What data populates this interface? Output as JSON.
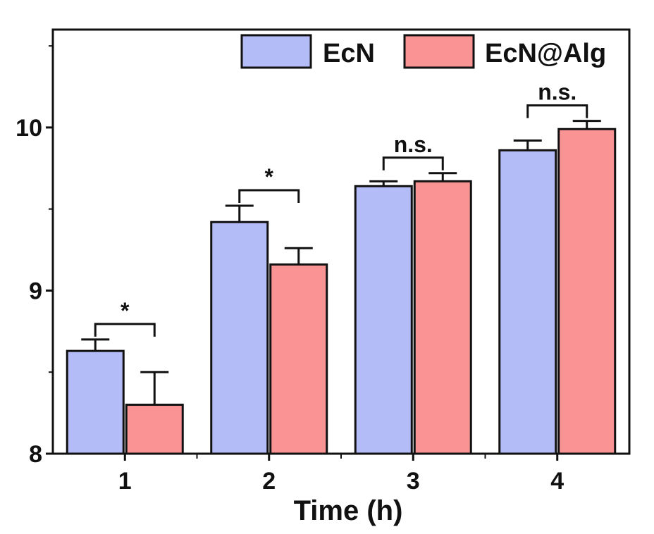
{
  "chart_data": {
    "type": "bar",
    "categories": [
      "1",
      "2",
      "3",
      "4"
    ],
    "series": [
      {
        "name": "EcN",
        "color": "#b3bcf7",
        "values": [
          8.63,
          9.42,
          9.64,
          9.86
        ],
        "errors": [
          0.07,
          0.1,
          0.03,
          0.06
        ]
      },
      {
        "name": "EcN@Alg",
        "color": "#f99394",
        "values": [
          8.3,
          9.16,
          9.67,
          9.99
        ],
        "errors": [
          0.2,
          0.1,
          0.05,
          0.05
        ]
      }
    ],
    "significance": [
      "*",
      "*",
      "n.s.",
      "n.s."
    ],
    "title": "",
    "xlabel": "Time (h)",
    "ylabel": "",
    "ylim": [
      8,
      10.6
    ],
    "yticks": [
      "8",
      "9",
      "10"
    ],
    "legend_position": "top-right",
    "grid": false
  }
}
